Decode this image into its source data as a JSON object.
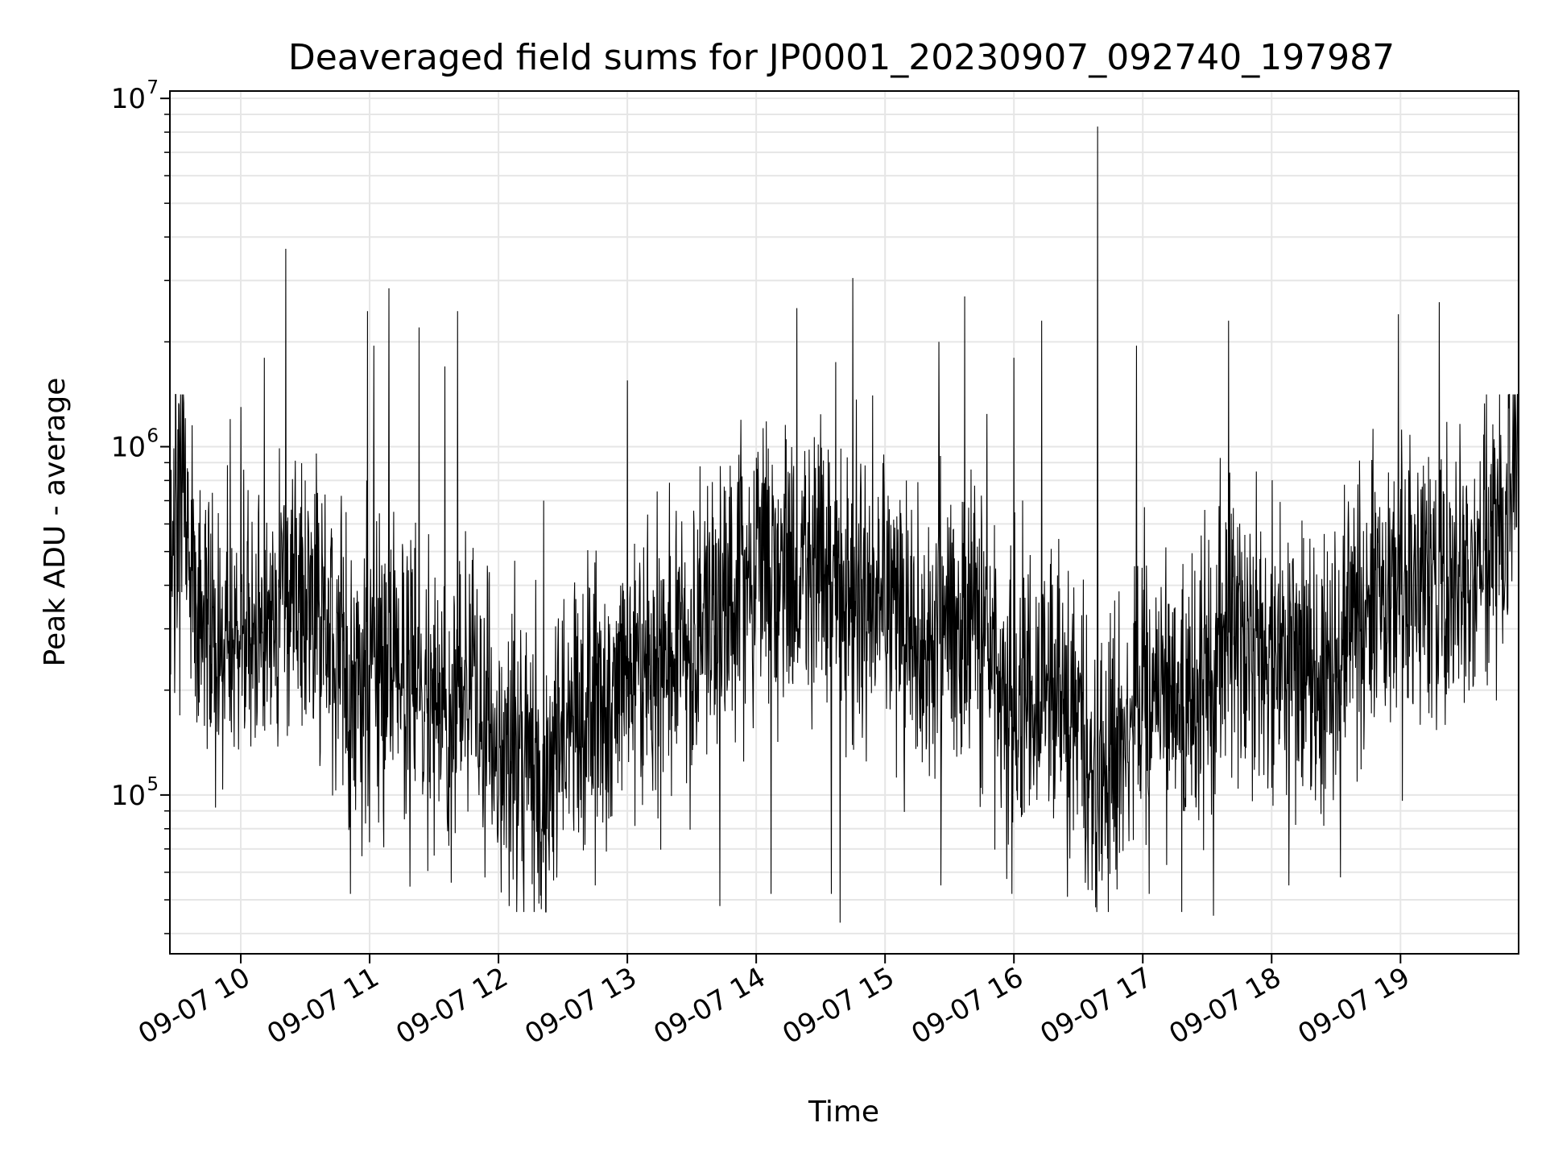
{
  "chart_data": {
    "type": "line",
    "title": "Deaveraged field sums for JP0001_20230907_092740_197987",
    "xlabel": "Time",
    "ylabel": "Peak ADU - average",
    "yscale": "log",
    "ylim": [
      35000,
      10500000
    ],
    "xlim": [
      "2023-09-07 09:27",
      "2023-09-07 19:55"
    ],
    "grid": true,
    "line_color": "#000000",
    "grid_color": "#e6e6e6",
    "x_ticks": [
      {
        "value": "2023-09-07 10:00",
        "label": "09-07 10"
      },
      {
        "value": "2023-09-07 11:00",
        "label": "09-07 11"
      },
      {
        "value": "2023-09-07 12:00",
        "label": "09-07 12"
      },
      {
        "value": "2023-09-07 13:00",
        "label": "09-07 13"
      },
      {
        "value": "2023-09-07 14:00",
        "label": "09-07 14"
      },
      {
        "value": "2023-09-07 15:00",
        "label": "09-07 15"
      },
      {
        "value": "2023-09-07 16:00",
        "label": "09-07 16"
      },
      {
        "value": "2023-09-07 17:00",
        "label": "09-07 17"
      },
      {
        "value": "2023-09-07 18:00",
        "label": "09-07 18"
      },
      {
        "value": "2023-09-07 19:00",
        "label": "09-07 19"
      }
    ],
    "y_ticks": [
      {
        "value": 100000,
        "base": "10",
        "exp": "5"
      },
      {
        "value": 1000000,
        "base": "10",
        "exp": "6"
      },
      {
        "value": 10000000,
        "base": "10",
        "exp": "7"
      }
    ],
    "series": [
      {
        "trend": [
          [
            "2023-09-07 09:27",
            480000
          ],
          [
            "2023-09-07 09:33",
            900000
          ],
          [
            "2023-09-07 09:37",
            380000
          ],
          [
            "2023-09-07 09:50",
            260000
          ],
          [
            "2023-09-07 10:15",
            330000
          ],
          [
            "2023-09-07 10:35",
            380000
          ],
          [
            "2023-09-07 10:50",
            230000
          ],
          [
            "2023-09-07 11:05",
            260000
          ],
          [
            "2023-09-07 11:25",
            180000
          ],
          [
            "2023-09-07 11:45",
            210000
          ],
          [
            "2023-09-07 12:00",
            140000
          ],
          [
            "2023-09-07 12:20",
            100000
          ],
          [
            "2023-09-07 12:40",
            160000
          ],
          [
            "2023-09-07 13:00",
            230000
          ],
          [
            "2023-09-07 13:30",
            290000
          ],
          [
            "2023-09-07 14:00",
            480000
          ],
          [
            "2023-09-07 14:30",
            450000
          ],
          [
            "2023-09-07 15:00",
            380000
          ],
          [
            "2023-09-07 15:20",
            250000
          ],
          [
            "2023-09-07 15:40",
            350000
          ],
          [
            "2023-09-07 16:00",
            190000
          ],
          [
            "2023-09-07 16:20",
            220000
          ],
          [
            "2023-09-07 16:40",
            110000
          ],
          [
            "2023-09-07 17:00",
            200000
          ],
          [
            "2023-09-07 17:20",
            170000
          ],
          [
            "2023-09-07 17:40",
            280000
          ],
          [
            "2023-09-07 18:00",
            250000
          ],
          [
            "2023-09-07 18:20",
            210000
          ],
          [
            "2023-09-07 18:40",
            300000
          ],
          [
            "2023-09-07 19:00",
            420000
          ],
          [
            "2023-09-07 19:30",
            350000
          ],
          [
            "2023-09-07 19:50",
            650000
          ],
          [
            "2023-09-07 19:55",
            950000
          ]
        ],
        "spikes": [
          [
            "2023-09-07 09:41",
            750000
          ],
          [
            "2023-09-07 09:55",
            1200000
          ],
          [
            "2023-09-07 10:00",
            1300000
          ],
          [
            "2023-09-07 10:11",
            1800000
          ],
          [
            "2023-09-07 10:21",
            3700000
          ],
          [
            "2023-09-07 10:59",
            2450000
          ],
          [
            "2023-09-07 11:02",
            1950000
          ],
          [
            "2023-09-07 11:09",
            1600000
          ],
          [
            "2023-09-07 11:09",
            2850000
          ],
          [
            "2023-09-07 11:23",
            2200000
          ],
          [
            "2023-09-07 11:35",
            1700000
          ],
          [
            "2023-09-07 11:41",
            2450000
          ],
          [
            "2023-09-07 12:21",
            700000
          ],
          [
            "2023-09-07 12:45",
            820000
          ],
          [
            "2023-09-07 13:00",
            1550000
          ],
          [
            "2023-09-07 13:43",
            1500000
          ],
          [
            "2023-09-07 14:19",
            2500000
          ],
          [
            "2023-09-07 14:37",
            1750000
          ],
          [
            "2023-09-07 14:45",
            3050000
          ],
          [
            "2023-09-07 15:25",
            2000000
          ],
          [
            "2023-09-07 15:37",
            2700000
          ],
          [
            "2023-09-07 16:00",
            1800000
          ],
          [
            "2023-09-07 16:13",
            2300000
          ],
          [
            "2023-09-07 16:39",
            8300000
          ],
          [
            "2023-09-07 16:57",
            1950000
          ],
          [
            "2023-09-07 17:40",
            2300000
          ],
          [
            "2023-09-07 18:59",
            2400000
          ],
          [
            "2023-09-07 19:18",
            2600000
          ],
          [
            "2023-09-07 19:55",
            1600000
          ]
        ],
        "dips": [
          [
            "2023-09-07 10:51",
            52000
          ],
          [
            "2023-09-07 11:38",
            56000
          ],
          [
            "2023-09-07 12:05",
            48000
          ],
          [
            "2023-09-07 12:20",
            47000
          ],
          [
            "2023-09-07 12:45",
            55000
          ],
          [
            "2023-09-07 13:43",
            48000
          ],
          [
            "2023-09-07 14:07",
            52000
          ],
          [
            "2023-09-07 14:35",
            52000
          ],
          [
            "2023-09-07 14:39",
            43000
          ],
          [
            "2023-09-07 15:26",
            55000
          ],
          [
            "2023-09-07 15:59",
            52000
          ],
          [
            "2023-09-07 16:25",
            51000
          ],
          [
            "2023-09-07 17:03",
            52000
          ],
          [
            "2023-09-07 17:33",
            45000
          ],
          [
            "2023-09-07 18:08",
            55000
          ],
          [
            "2023-09-07 18:32",
            58000
          ]
        ]
      }
    ]
  }
}
